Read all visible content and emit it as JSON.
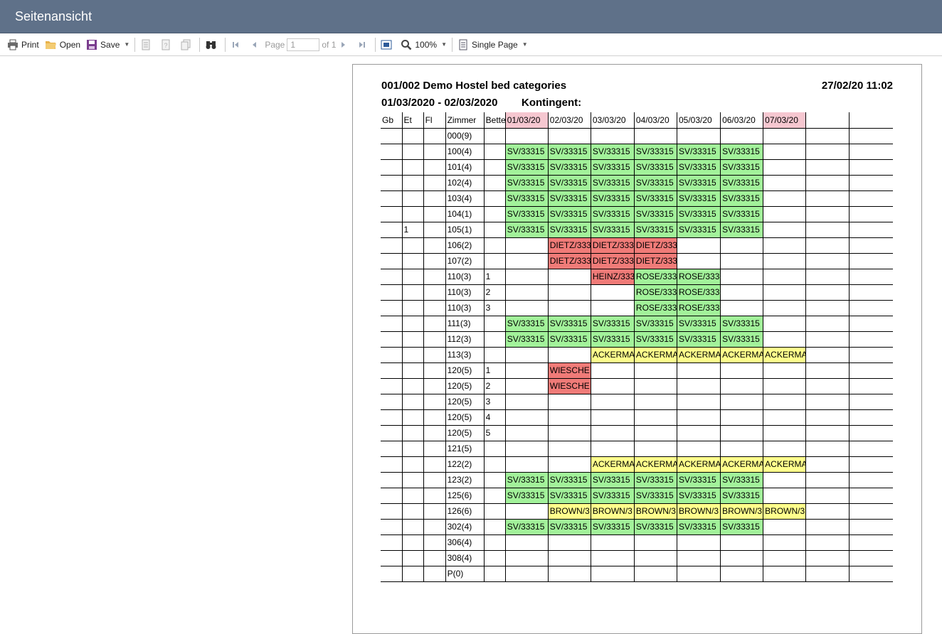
{
  "window": {
    "title": "Seitenansicht"
  },
  "toolbar": {
    "print_label": "Print",
    "open_label": "Open",
    "save_label": "Save",
    "page_label": "Page",
    "page_value": "1",
    "page_of": "of 1",
    "zoom_label": "100%",
    "view_mode_label": "Single Page"
  },
  "report": {
    "title": "001/002 Demo Hostel bed categories",
    "timestamp": "27/02/20 11:02",
    "date_range": "01/03/2020 - 02/03/2020",
    "kontingent_label": "Kontingent:",
    "columns": [
      "Gb",
      "Et",
      "Fl",
      "Zimmer",
      "Bette",
      "01/03/20",
      "02/03/20",
      "03/03/20",
      "04/03/20",
      "05/03/20",
      "06/03/20",
      "07/03/20",
      "",
      ""
    ],
    "rows": [
      {
        "gb": "",
        "et": "",
        "fl": "",
        "zimmer": "000(9)",
        "bett": "",
        "cells": []
      },
      {
        "gb": "",
        "et": "",
        "fl": "",
        "zimmer": "100(4)",
        "bett": "",
        "cells": [
          {
            "text": "SV/33315",
            "color": "green"
          },
          {
            "text": "SV/33315",
            "color": "green"
          },
          {
            "text": "SV/33315",
            "color": "green"
          },
          {
            "text": "SV/33315",
            "color": "green"
          },
          {
            "text": "SV/33315",
            "color": "green"
          },
          {
            "text": "SV/33315",
            "color": "green"
          }
        ]
      },
      {
        "gb": "",
        "et": "",
        "fl": "",
        "zimmer": "101(4)",
        "bett": "",
        "cells": [
          {
            "text": "SV/33315",
            "color": "green"
          },
          {
            "text": "SV/33315",
            "color": "green"
          },
          {
            "text": "SV/33315",
            "color": "green"
          },
          {
            "text": "SV/33315",
            "color": "green"
          },
          {
            "text": "SV/33315",
            "color": "green"
          },
          {
            "text": "SV/33315",
            "color": "green"
          }
        ]
      },
      {
        "gb": "",
        "et": "",
        "fl": "",
        "zimmer": "102(4)",
        "bett": "",
        "cells": [
          {
            "text": "SV/33315",
            "color": "green"
          },
          {
            "text": "SV/33315",
            "color": "green"
          },
          {
            "text": "SV/33315",
            "color": "green"
          },
          {
            "text": "SV/33315",
            "color": "green"
          },
          {
            "text": "SV/33315",
            "color": "green"
          },
          {
            "text": "SV/33315",
            "color": "green"
          }
        ]
      },
      {
        "gb": "",
        "et": "",
        "fl": "",
        "zimmer": "103(4)",
        "bett": "",
        "cells": [
          {
            "text": "SV/33315",
            "color": "green"
          },
          {
            "text": "SV/33315",
            "color": "green"
          },
          {
            "text": "SV/33315",
            "color": "green"
          },
          {
            "text": "SV/33315",
            "color": "green"
          },
          {
            "text": "SV/33315",
            "color": "green"
          },
          {
            "text": "SV/33315",
            "color": "green"
          }
        ]
      },
      {
        "gb": "",
        "et": "",
        "fl": "",
        "zimmer": "104(1)",
        "bett": "",
        "cells": [
          {
            "text": "SV/33315",
            "color": "green"
          },
          {
            "text": "SV/33315",
            "color": "green"
          },
          {
            "text": "SV/33315",
            "color": "green"
          },
          {
            "text": "SV/33315",
            "color": "green"
          },
          {
            "text": "SV/33315",
            "color": "green"
          },
          {
            "text": "SV/33315",
            "color": "green"
          }
        ]
      },
      {
        "gb": "",
        "et": "1",
        "fl": "",
        "zimmer": "105(1)",
        "bett": "",
        "cells": [
          {
            "text": "SV/33315",
            "color": "green"
          },
          {
            "text": "SV/33315",
            "color": "green"
          },
          {
            "text": "SV/33315",
            "color": "green"
          },
          {
            "text": "SV/33315",
            "color": "green"
          },
          {
            "text": "SV/33315",
            "color": "green"
          },
          {
            "text": "SV/33315",
            "color": "green"
          }
        ]
      },
      {
        "gb": "",
        "et": "",
        "fl": "",
        "zimmer": "106(2)",
        "bett": "",
        "cells": [
          {
            "text": "",
            "color": ""
          },
          {
            "text": "DIETZ/333",
            "color": "red"
          },
          {
            "text": "DIETZ/333",
            "color": "red"
          },
          {
            "text": "DIETZ/333",
            "color": "red"
          }
        ]
      },
      {
        "gb": "",
        "et": "",
        "fl": "",
        "zimmer": "107(2)",
        "bett": "",
        "cells": [
          {
            "text": "",
            "color": ""
          },
          {
            "text": "DIETZ/333",
            "color": "red"
          },
          {
            "text": "DIETZ/333",
            "color": "red"
          },
          {
            "text": "DIETZ/333",
            "color": "red"
          }
        ]
      },
      {
        "gb": "",
        "et": "",
        "fl": "",
        "zimmer": "110(3)",
        "bett": "1",
        "cells": [
          {
            "text": "",
            "color": ""
          },
          {
            "text": "",
            "color": ""
          },
          {
            "text": "HEINZ/333",
            "color": "red"
          },
          {
            "text": "ROSE/333",
            "color": "green"
          },
          {
            "text": "ROSE/333",
            "color": "green"
          }
        ]
      },
      {
        "gb": "",
        "et": "",
        "fl": "",
        "zimmer": "110(3)",
        "bett": "2",
        "cells": [
          {
            "text": "",
            "color": ""
          },
          {
            "text": "",
            "color": ""
          },
          {
            "text": "",
            "color": ""
          },
          {
            "text": "ROSE/333",
            "color": "green"
          },
          {
            "text": "ROSE/333",
            "color": "green"
          }
        ]
      },
      {
        "gb": "",
        "et": "",
        "fl": "",
        "zimmer": "110(3)",
        "bett": "3",
        "cells": [
          {
            "text": "",
            "color": ""
          },
          {
            "text": "",
            "color": ""
          },
          {
            "text": "",
            "color": ""
          },
          {
            "text": "ROSE/333",
            "color": "green"
          },
          {
            "text": "ROSE/333",
            "color": "green"
          }
        ]
      },
      {
        "gb": "",
        "et": "",
        "fl": "",
        "zimmer": "111(3)",
        "bett": "",
        "cells": [
          {
            "text": "SV/33315",
            "color": "green"
          },
          {
            "text": "SV/33315",
            "color": "green"
          },
          {
            "text": "SV/33315",
            "color": "green"
          },
          {
            "text": "SV/33315",
            "color": "green"
          },
          {
            "text": "SV/33315",
            "color": "green"
          },
          {
            "text": "SV/33315",
            "color": "green"
          }
        ]
      },
      {
        "gb": "",
        "et": "",
        "fl": "",
        "zimmer": "112(3)",
        "bett": "",
        "cells": [
          {
            "text": "SV/33315",
            "color": "green"
          },
          {
            "text": "SV/33315",
            "color": "green"
          },
          {
            "text": "SV/33315",
            "color": "green"
          },
          {
            "text": "SV/33315",
            "color": "green"
          },
          {
            "text": "SV/33315",
            "color": "green"
          },
          {
            "text": "SV/33315",
            "color": "green"
          }
        ]
      },
      {
        "gb": "",
        "et": "",
        "fl": "",
        "zimmer": "113(3)",
        "bett": "",
        "cells": [
          {
            "text": "",
            "color": ""
          },
          {
            "text": "",
            "color": ""
          },
          {
            "text": "ACKERMA",
            "color": "yellow"
          },
          {
            "text": "ACKERMA",
            "color": "yellow"
          },
          {
            "text": "ACKERMA",
            "color": "yellow"
          },
          {
            "text": "ACKERMA",
            "color": "yellow"
          },
          {
            "text": "ACKERMA",
            "color": "yellow"
          }
        ]
      },
      {
        "gb": "",
        "et": "",
        "fl": "",
        "zimmer": "120(5)",
        "bett": "1",
        "cells": [
          {
            "text": "",
            "color": ""
          },
          {
            "text": "WIESCHE",
            "color": "red"
          }
        ]
      },
      {
        "gb": "",
        "et": "",
        "fl": "",
        "zimmer": "120(5)",
        "bett": "2",
        "cells": [
          {
            "text": "",
            "color": ""
          },
          {
            "text": "WIESCHE",
            "color": "red"
          }
        ]
      },
      {
        "gb": "",
        "et": "",
        "fl": "",
        "zimmer": "120(5)",
        "bett": "3",
        "cells": []
      },
      {
        "gb": "",
        "et": "",
        "fl": "",
        "zimmer": "120(5)",
        "bett": "4",
        "cells": []
      },
      {
        "gb": "",
        "et": "",
        "fl": "",
        "zimmer": "120(5)",
        "bett": "5",
        "cells": []
      },
      {
        "gb": "",
        "et": "",
        "fl": "",
        "zimmer": "121(5)",
        "bett": "",
        "cells": []
      },
      {
        "gb": "",
        "et": "",
        "fl": "",
        "zimmer": "122(2)",
        "bett": "",
        "cells": [
          {
            "text": "",
            "color": ""
          },
          {
            "text": "",
            "color": ""
          },
          {
            "text": "ACKERMA",
            "color": "yellow"
          },
          {
            "text": "ACKERMA",
            "color": "yellow"
          },
          {
            "text": "ACKERMA",
            "color": "yellow"
          },
          {
            "text": "ACKERMA",
            "color": "yellow"
          },
          {
            "text": "ACKERMA",
            "color": "yellow"
          }
        ]
      },
      {
        "gb": "",
        "et": "",
        "fl": "",
        "zimmer": "123(2)",
        "bett": "",
        "cells": [
          {
            "text": "SV/33315",
            "color": "green"
          },
          {
            "text": "SV/33315",
            "color": "green"
          },
          {
            "text": "SV/33315",
            "color": "green"
          },
          {
            "text": "SV/33315",
            "color": "green"
          },
          {
            "text": "SV/33315",
            "color": "green"
          },
          {
            "text": "SV/33315",
            "color": "green"
          }
        ]
      },
      {
        "gb": "",
        "et": "",
        "fl": "",
        "zimmer": "125(6)",
        "bett": "",
        "cells": [
          {
            "text": "SV/33315",
            "color": "green"
          },
          {
            "text": "SV/33315",
            "color": "green"
          },
          {
            "text": "SV/33315",
            "color": "green"
          },
          {
            "text": "SV/33315",
            "color": "green"
          },
          {
            "text": "SV/33315",
            "color": "green"
          },
          {
            "text": "SV/33315",
            "color": "green"
          }
        ]
      },
      {
        "gb": "",
        "et": "",
        "fl": "",
        "zimmer": "126(6)",
        "bett": "",
        "cells": [
          {
            "text": "",
            "color": ""
          },
          {
            "text": "BROWN/3",
            "color": "yellow"
          },
          {
            "text": "BROWN/3",
            "color": "yellow"
          },
          {
            "text": "BROWN/3",
            "color": "yellow"
          },
          {
            "text": "BROWN/3",
            "color": "yellow"
          },
          {
            "text": "BROWN/3",
            "color": "yellow"
          },
          {
            "text": "BROWN/3",
            "color": "yellow"
          }
        ]
      },
      {
        "gb": "",
        "et": "",
        "fl": "",
        "zimmer": "302(4)",
        "bett": "",
        "cells": [
          {
            "text": "SV/33315",
            "color": "green"
          },
          {
            "text": "SV/33315",
            "color": "green"
          },
          {
            "text": "SV/33315",
            "color": "green"
          },
          {
            "text": "SV/33315",
            "color": "green"
          },
          {
            "text": "SV/33315",
            "color": "green"
          },
          {
            "text": "SV/33315",
            "color": "green"
          }
        ]
      },
      {
        "gb": "",
        "et": "",
        "fl": "",
        "zimmer": "306(4)",
        "bett": "",
        "cells": []
      },
      {
        "gb": "",
        "et": "",
        "fl": "",
        "zimmer": "308(4)",
        "bett": "",
        "cells": []
      },
      {
        "gb": "",
        "et": "",
        "fl": "",
        "zimmer": "P(0)",
        "bett": "",
        "cells": []
      }
    ]
  },
  "colors": {
    "green": "#a2f29a",
    "red": "#f07b78",
    "yellow": "#ffff8c",
    "header_pink": "#f6c7d0",
    "titlebar": "#5f7189"
  }
}
